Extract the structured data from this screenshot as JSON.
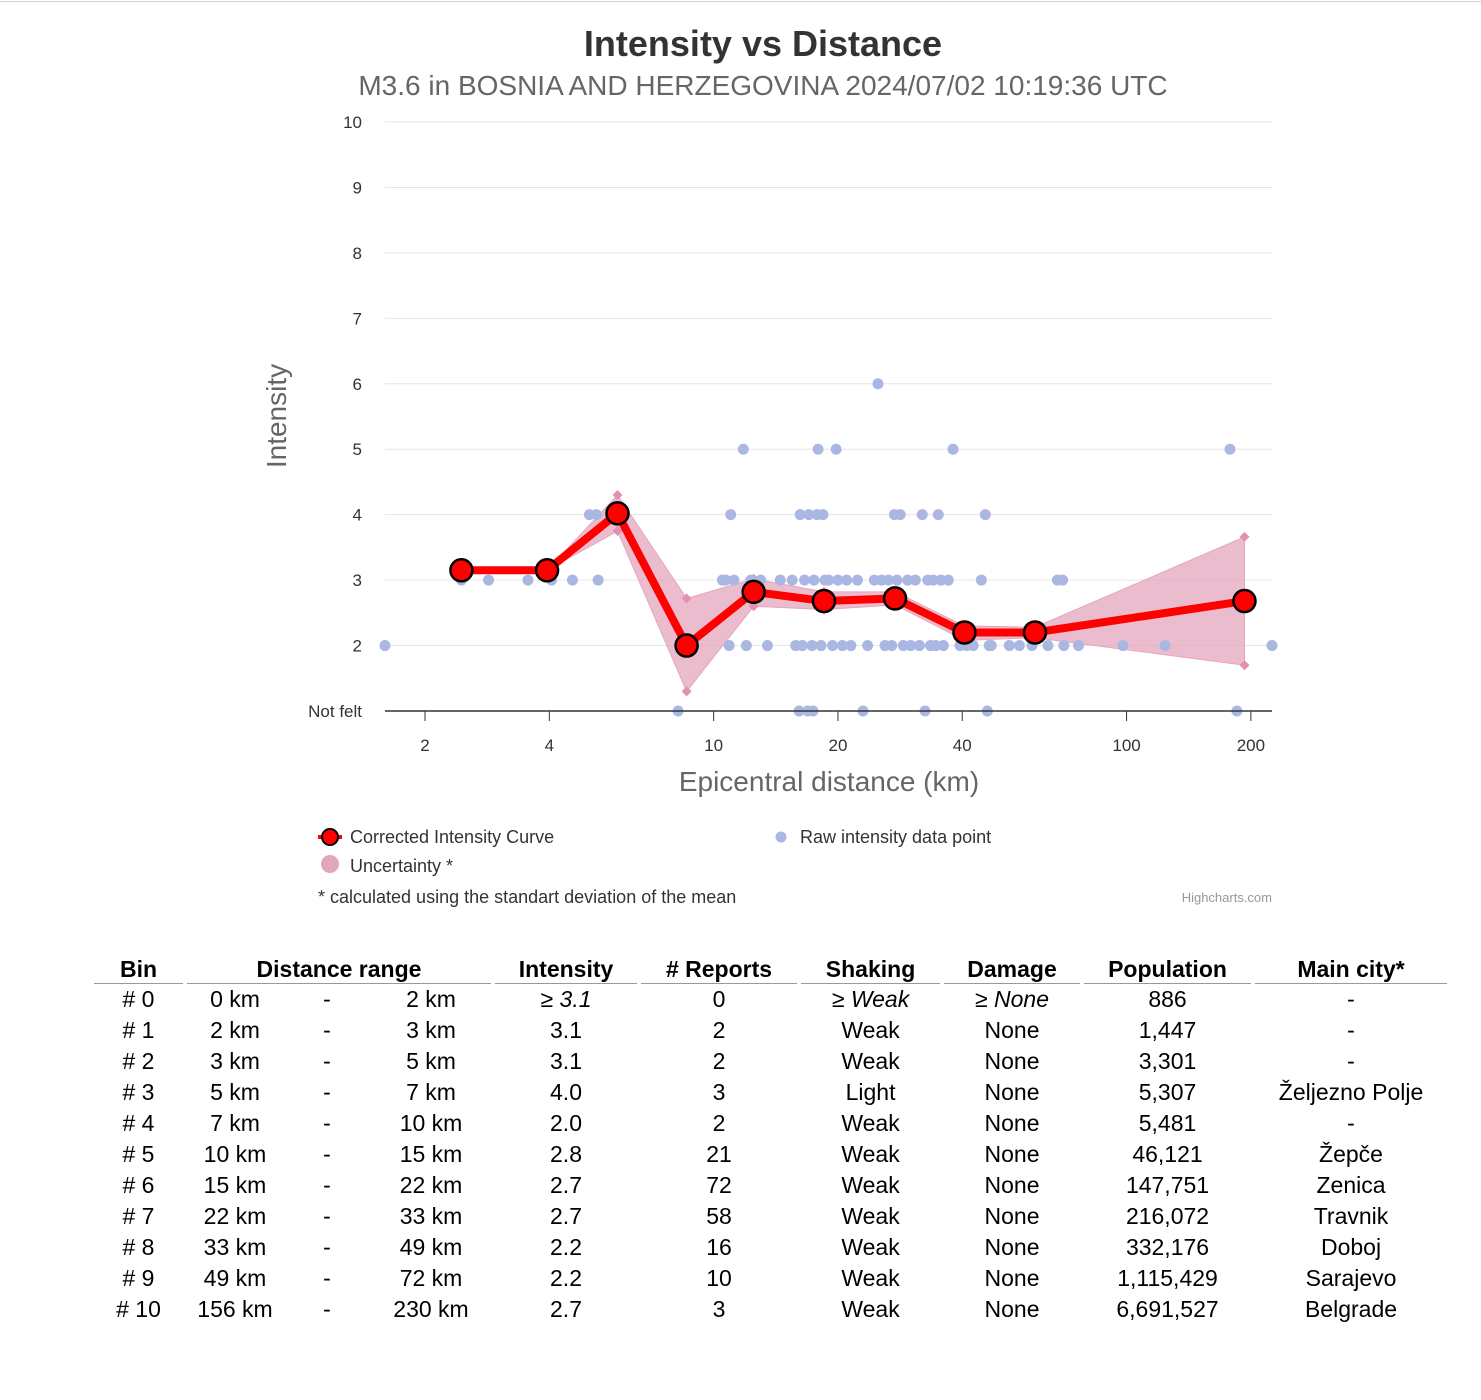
{
  "chart_data": {
    "type": "line",
    "title": "Intensity vs Distance",
    "subtitle": "M3.6 in BOSNIA AND HERZEGOVINA 2024/07/02 10:19:36 UTC",
    "xlabel": "Epicentral distance (km)",
    "ylabel": "Intensity",
    "x_scale": "log",
    "xlim": [
      1.6,
      225
    ],
    "ylim": [
      1,
      10
    ],
    "x_ticks": [
      2,
      4,
      10,
      20,
      40,
      100,
      200
    ],
    "y_ticks": [
      {
        "value": 1,
        "label": "Not felt"
      },
      {
        "value": 2,
        "label": "2"
      },
      {
        "value": 3,
        "label": "3"
      },
      {
        "value": 4,
        "label": "4"
      },
      {
        "value": 5,
        "label": "5"
      },
      {
        "value": 6,
        "label": "6"
      },
      {
        "value": 7,
        "label": "7"
      },
      {
        "value": 8,
        "label": "8"
      },
      {
        "value": 9,
        "label": "9"
      },
      {
        "value": 10,
        "label": "10"
      }
    ],
    "series": [
      {
        "name": "Corrected Intensity Curve",
        "color": "#ff0000",
        "x": [
          2.45,
          3.95,
          5.85,
          8.6,
          12.5,
          18.5,
          27.5,
          40.5,
          60,
          193
        ],
        "y": [
          3.15,
          3.15,
          4.02,
          2.0,
          2.82,
          2.68,
          2.72,
          2.2,
          2.2,
          2.68
        ]
      },
      {
        "name": "Uncertainty *",
        "color": "#e4a6be",
        "x": [
          2.45,
          3.95,
          5.85,
          8.6,
          12.5,
          18.5,
          27.5,
          40.5,
          60,
          193
        ],
        "low": [
          3.15,
          3.15,
          3.75,
          1.3,
          2.6,
          2.55,
          2.62,
          2.08,
          2.12,
          1.7
        ],
        "high": [
          3.15,
          3.15,
          4.3,
          2.72,
          3.02,
          2.82,
          2.82,
          2.3,
          2.28,
          3.66
        ]
      },
      {
        "name": "Raw intensity data point",
        "color": "#aab7e3",
        "points": [
          [
            1.6,
            2
          ],
          [
            2.45,
            3
          ],
          [
            2.85,
            3
          ],
          [
            3.55,
            3
          ],
          [
            4.05,
            3
          ],
          [
            4.55,
            3
          ],
          [
            5.0,
            4
          ],
          [
            5.2,
            4
          ],
          [
            5.25,
            3
          ],
          [
            5.8,
            4
          ],
          [
            8.2,
            1
          ],
          [
            10.5,
            3
          ],
          [
            10.7,
            3
          ],
          [
            10.9,
            2
          ],
          [
            11.0,
            4
          ],
          [
            11.2,
            3
          ],
          [
            11.8,
            5
          ],
          [
            12.0,
            2
          ],
          [
            12.3,
            3
          ],
          [
            13.0,
            3
          ],
          [
            13.5,
            2
          ],
          [
            14.5,
            3
          ],
          [
            15.5,
            3
          ],
          [
            15.8,
            2
          ],
          [
            16.1,
            1
          ],
          [
            16.2,
            4
          ],
          [
            16.4,
            2
          ],
          [
            16.6,
            3
          ],
          [
            16.9,
            1
          ],
          [
            17.0,
            4
          ],
          [
            17.3,
            2
          ],
          [
            17.4,
            1
          ],
          [
            17.5,
            3
          ],
          [
            17.8,
            4
          ],
          [
            17.9,
            5
          ],
          [
            18.2,
            2
          ],
          [
            18.4,
            4
          ],
          [
            18.6,
            3
          ],
          [
            19.0,
            3
          ],
          [
            19.4,
            2
          ],
          [
            19.8,
            5
          ],
          [
            20.0,
            3
          ],
          [
            20.5,
            2
          ],
          [
            21.0,
            3
          ],
          [
            21.5,
            2
          ],
          [
            22.3,
            3
          ],
          [
            23.0,
            1
          ],
          [
            23.6,
            2
          ],
          [
            24.5,
            3
          ],
          [
            25.0,
            6
          ],
          [
            25.5,
            3
          ],
          [
            26.0,
            2
          ],
          [
            26.5,
            3
          ],
          [
            27.0,
            2
          ],
          [
            27.4,
            4
          ],
          [
            27.8,
            3
          ],
          [
            28.3,
            4
          ],
          [
            28.8,
            2
          ],
          [
            29.5,
            3
          ],
          [
            30.0,
            2
          ],
          [
            30.8,
            3
          ],
          [
            31.5,
            2
          ],
          [
            32.0,
            4
          ],
          [
            32.5,
            1
          ],
          [
            33.0,
            3
          ],
          [
            33.5,
            2
          ],
          [
            34.0,
            3
          ],
          [
            34.5,
            2
          ],
          [
            35.0,
            4
          ],
          [
            35.5,
            3
          ],
          [
            36.0,
            2
          ],
          [
            37.0,
            3
          ],
          [
            38.0,
            5
          ],
          [
            39.5,
            2
          ],
          [
            41.0,
            2
          ],
          [
            42.5,
            2
          ],
          [
            44.5,
            3
          ],
          [
            45.5,
            4
          ],
          [
            46.0,
            1
          ],
          [
            46.5,
            2
          ],
          [
            47.0,
            2
          ],
          [
            52.0,
            2
          ],
          [
            55.0,
            2
          ],
          [
            59.0,
            2
          ],
          [
            64.5,
            2
          ],
          [
            68.0,
            3
          ],
          [
            70.0,
            3
          ],
          [
            70.5,
            2
          ],
          [
            76.5,
            2
          ],
          [
            98.0,
            2
          ],
          [
            124.0,
            2
          ],
          [
            178.0,
            5
          ],
          [
            185.0,
            1
          ],
          [
            225.0,
            2
          ]
        ]
      }
    ],
    "legend_position": "bottom"
  },
  "legend": {
    "curve": "Corrected Intensity Curve",
    "uncertainty": "Uncertainty *",
    "raw": "Raw intensity data point",
    "note": "* calculated using the standart deviation of the mean"
  },
  "credits": "Highcharts.com",
  "table": {
    "headers": {
      "bin": "Bin",
      "distance_range": "Distance range",
      "intensity": "Intensity",
      "reports": "# Reports",
      "shaking": "Shaking",
      "damage": "Damage",
      "population": "Population",
      "main_city": "Main city*"
    },
    "rows": [
      {
        "bin": "# 0",
        "from": "0 km",
        "sep": "-",
        "to": "2 km",
        "intensity": "≥ 3.1",
        "reports": "0",
        "shaking": "≥ Weak",
        "damage": "≥ None",
        "population": "886",
        "city": "-"
      },
      {
        "bin": "# 1",
        "from": "2 km",
        "sep": "-",
        "to": "3 km",
        "intensity": "3.1",
        "reports": "2",
        "shaking": "Weak",
        "damage": "None",
        "population": "1,447",
        "city": "-"
      },
      {
        "bin": "# 2",
        "from": "3 km",
        "sep": "-",
        "to": "5 km",
        "intensity": "3.1",
        "reports": "2",
        "shaking": "Weak",
        "damage": "None",
        "population": "3,301",
        "city": "-"
      },
      {
        "bin": "# 3",
        "from": "5 km",
        "sep": "-",
        "to": "7 km",
        "intensity": "4.0",
        "reports": "3",
        "shaking": "Light",
        "damage": "None",
        "population": "5,307",
        "city": "Željezno Polje"
      },
      {
        "bin": "# 4",
        "from": "7 km",
        "sep": "-",
        "to": "10 km",
        "intensity": "2.0",
        "reports": "2",
        "shaking": "Weak",
        "damage": "None",
        "population": "5,481",
        "city": "-"
      },
      {
        "bin": "# 5",
        "from": "10 km",
        "sep": "-",
        "to": "15 km",
        "intensity": "2.8",
        "reports": "21",
        "shaking": "Weak",
        "damage": "None",
        "population": "46,121",
        "city": "Žepče"
      },
      {
        "bin": "# 6",
        "from": "15 km",
        "sep": "-",
        "to": "22 km",
        "intensity": "2.7",
        "reports": "72",
        "shaking": "Weak",
        "damage": "None",
        "population": "147,751",
        "city": "Zenica"
      },
      {
        "bin": "# 7",
        "from": "22 km",
        "sep": "-",
        "to": "33 km",
        "intensity": "2.7",
        "reports": "58",
        "shaking": "Weak",
        "damage": "None",
        "population": "216,072",
        "city": "Travnik"
      },
      {
        "bin": "# 8",
        "from": "33 km",
        "sep": "-",
        "to": "49 km",
        "intensity": "2.2",
        "reports": "16",
        "shaking": "Weak",
        "damage": "None",
        "population": "332,176",
        "city": "Doboj"
      },
      {
        "bin": "# 9",
        "from": "49 km",
        "sep": "-",
        "to": "72 km",
        "intensity": "2.2",
        "reports": "10",
        "shaking": "Weak",
        "damage": "None",
        "population": "1,115,429",
        "city": "Sarajevo"
      },
      {
        "bin": "# 10",
        "from": "156 km",
        "sep": "-",
        "to": "230 km",
        "intensity": "2.7",
        "reports": "3",
        "shaking": "Weak",
        "damage": "None",
        "population": "6,691,527",
        "city": "Belgrade"
      }
    ]
  }
}
